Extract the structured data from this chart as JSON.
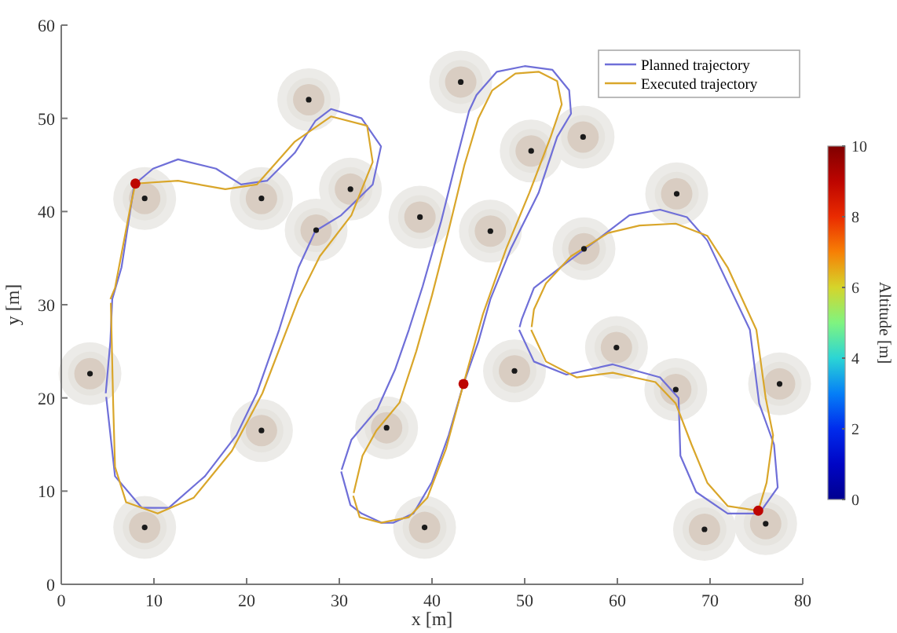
{
  "chart_data": {
    "type": "line",
    "xlabel": "x [m]",
    "ylabel": "y [m]",
    "clabel": "Altitude [m]",
    "xlim": [
      0,
      80
    ],
    "xticks": [
      0,
      10,
      20,
      30,
      40,
      50,
      60,
      70,
      80
    ],
    "ylim": [
      0,
      60
    ],
    "yticks": [
      0,
      10,
      20,
      30,
      40,
      50,
      60
    ],
    "clim": [
      0,
      10
    ],
    "cticks": [
      0,
      2,
      4,
      6,
      8,
      10
    ],
    "grid": false,
    "legend": "top right",
    "series": [
      {
        "name": "Planned trajectory",
        "color": "#6f6fd8",
        "x": [
          4.8,
          5.3,
          5.5,
          6.5,
          7.8,
          8,
          9.9,
          12.6,
          16.7,
          19.4,
          22.2,
          25.2,
          27.4,
          29.1,
          32.4,
          34.5,
          33.6,
          30.2,
          27.4,
          25.6,
          23.5,
          21.1,
          18.9,
          15.5,
          11.6,
          8.7,
          5.8,
          4.85
        ],
        "values": [
          20.5,
          26.1,
          30.6,
          34,
          42.4,
          43,
          44.6,
          45.6,
          44.6,
          42.9,
          43.3,
          46.3,
          49.7,
          51,
          50,
          47,
          42.9,
          39.6,
          37.9,
          34,
          27.3,
          20.5,
          16,
          11.6,
          8.2,
          8.2,
          11.6,
          20.1
        ]
      },
      {
        "name": "Executed trajectory",
        "color": "#d9a62a",
        "x": [
          5.3,
          5.8,
          7.5,
          8,
          12.6,
          17.7,
          21.1,
          25.2,
          29.1,
          33,
          33.6,
          31.3,
          27.9,
          25.6,
          21.7,
          18.4,
          14.3,
          10.4,
          7,
          5.8,
          5.6,
          5.35
        ],
        "values": [
          30.6,
          31.8,
          40.7,
          43,
          43.3,
          42.4,
          42.9,
          47.5,
          50.2,
          49.2,
          45.3,
          39.6,
          35.2,
          30.6,
          20.5,
          14.3,
          9.3,
          7.6,
          8.8,
          12.6,
          19.4,
          30.2
        ]
      },
      {
        "color": "#6f6fd8",
        "x": [
          30.2,
          31.2,
          32.4,
          34.6,
          35.8,
          38,
          40,
          41.8,
          43.4,
          45,
          46.3,
          48.5,
          51.5,
          53.5,
          55,
          54.8,
          53,
          50,
          47,
          44.8,
          44,
          42.5,
          41,
          39,
          37.5,
          36,
          34.1,
          31.3,
          30.25
        ],
        "values": [
          12.1,
          8.5,
          7.6,
          6.6,
          6.6,
          7.6,
          11,
          16,
          21.5,
          26,
          30.6,
          36,
          42,
          48,
          50.5,
          53,
          55.2,
          55.6,
          55,
          52.5,
          50.8,
          45,
          39,
          32,
          27.3,
          23,
          18.8,
          15.5,
          12.3
        ]
      },
      {
        "color": "#d9a62a",
        "x": [
          31.5,
          32.2,
          34.5,
          37.5,
          39.5,
          41.5,
          43.4,
          45.5,
          48,
          50.5,
          52.8,
          54,
          53.5,
          51.5,
          49,
          46.5,
          45,
          43.5,
          41.8,
          40,
          38.3,
          36.5,
          34,
          32.5,
          31.55
        ],
        "values": [
          9.5,
          7.2,
          6.6,
          7.2,
          9.3,
          14.5,
          21.5,
          29,
          36,
          42,
          48,
          51.5,
          54,
          55,
          54.8,
          53,
          50,
          45,
          38,
          31,
          25,
          19.5,
          16.5,
          13.8,
          9.8
        ]
      },
      {
        "color": "#6f6fd8",
        "x": [
          49.4,
          51,
          54.5,
          59.5,
          64.6,
          66.6,
          66.8,
          68.5,
          71.9,
          75.3,
          77.3,
          76.9,
          75.3,
          74.3,
          69.7,
          67.5,
          64.6,
          61.3,
          58.4,
          54.5,
          51,
          49.7,
          49.45
        ],
        "values": [
          27.3,
          23.9,
          22.5,
          23.6,
          22.2,
          20,
          13.8,
          9.9,
          7.6,
          7.6,
          10.4,
          15,
          19.4,
          27.3,
          36.9,
          39.4,
          40.2,
          39.6,
          37.4,
          34.5,
          31.8,
          28.5,
          27.6
        ]
      },
      {
        "color": "#d9a62a",
        "x": [
          50.7,
          52.3,
          55.6,
          59.5,
          64.1,
          66.3,
          68,
          69.7,
          71.9,
          75.2,
          76.1,
          76.8,
          76,
          75,
          71.9,
          69.7,
          66.3,
          62.4,
          59,
          55,
          52.3,
          51,
          50.75
        ],
        "values": [
          27.3,
          23.9,
          22.2,
          22.7,
          21.7,
          19.4,
          15,
          10.9,
          8.4,
          7.9,
          10.9,
          16,
          20,
          27.3,
          34,
          37.4,
          38.7,
          38.5,
          37.7,
          35.2,
          32.3,
          29.5,
          27.6
        ]
      },
      {
        "type": "scatter",
        "color": "#1a1a1a",
        "marker": "circle",
        "x": [
          9,
          3.1,
          9,
          21.6,
          21.6,
          26.7,
          27.5,
          31.2,
          38.7,
          35.1,
          39.2,
          43.1,
          48.9,
          50.7,
          56.3,
          46.3,
          56.4,
          66.4,
          59.9,
          66.3,
          77.5,
          69.4,
          76
        ],
        "values": [
          41.4,
          22.6,
          6.1,
          16.5,
          41.4,
          52,
          38,
          42.4,
          39.4,
          16.8,
          6.1,
          53.9,
          22.9,
          46.5,
          48,
          37.9,
          36,
          41.9,
          25.4,
          20.9,
          21.5,
          5.9,
          6.5
        ]
      },
      {
        "type": "scatter",
        "marker": "circle",
        "x": [
          8,
          43.4,
          75.2
        ],
        "values": [
          43,
          21.5,
          7.9
        ],
        "cvalues": [
          9,
          9,
          9
        ]
      }
    ]
  }
}
